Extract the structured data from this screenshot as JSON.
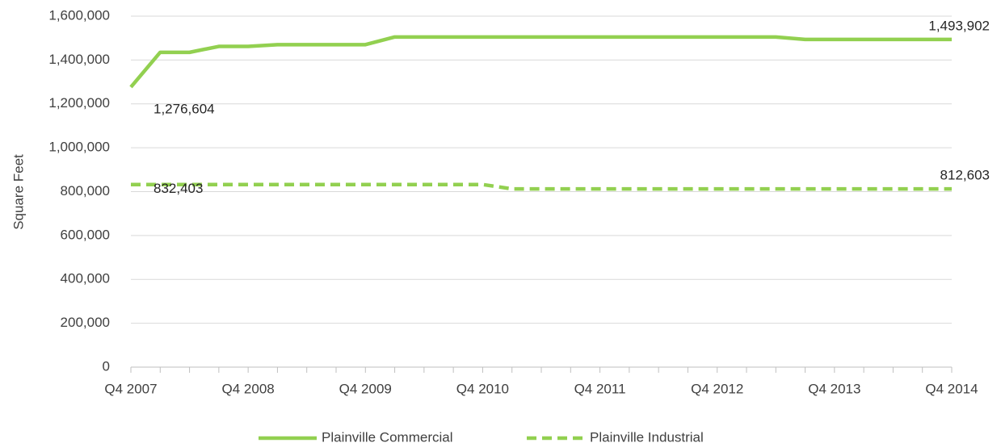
{
  "chart_data": {
    "type": "line",
    "y_label": "Square Feet",
    "categories": [
      "Q4 2007",
      null,
      null,
      null,
      "Q4 2008",
      null,
      null,
      null,
      "Q4 2009",
      null,
      null,
      null,
      "Q4 2010",
      null,
      null,
      null,
      "Q4 2011",
      null,
      null,
      null,
      "Q4 2012",
      null,
      null,
      null,
      "Q4 2013",
      null,
      null,
      null,
      "Q4 2014"
    ],
    "series": [
      {
        "name": "Plainville Commercial",
        "color": "#92d050",
        "line_style": "solid",
        "values": [
          1276604,
          1435000,
          1435000,
          1462000,
          1462000,
          1470000,
          1470000,
          1470000,
          1470000,
          1505000,
          1505000,
          1505000,
          1505000,
          1505000,
          1505000,
          1505000,
          1505000,
          1505000,
          1505000,
          1505000,
          1505000,
          1505000,
          1505000,
          1493902,
          1493902,
          1493902,
          1493902,
          1493902,
          1493902
        ],
        "value_labels": [
          "1,276,604",
          null,
          null,
          null,
          null,
          null,
          null,
          null,
          null,
          null,
          null,
          null,
          null,
          null,
          null,
          null,
          null,
          null,
          null,
          null,
          null,
          null,
          null,
          null,
          null,
          null,
          null,
          null,
          "1,493,902"
        ]
      },
      {
        "name": "Plainville Industrial",
        "color": "#92d050",
        "line_style": "dashed",
        "values": [
          832403,
          832403,
          832403,
          832403,
          832403,
          832403,
          832403,
          832403,
          832403,
          832403,
          832403,
          832403,
          832403,
          812603,
          812603,
          812603,
          812603,
          812603,
          812603,
          812603,
          812603,
          812603,
          812603,
          812603,
          812603,
          812603,
          812603,
          812603,
          812603
        ],
        "value_labels": [
          "832,403",
          null,
          null,
          null,
          null,
          null,
          null,
          null,
          null,
          null,
          null,
          null,
          null,
          null,
          null,
          null,
          null,
          null,
          null,
          null,
          null,
          null,
          null,
          null,
          null,
          null,
          null,
          null,
          "812,603"
        ]
      }
    ],
    "ylim": [
      0,
      1600000
    ],
    "yticks": [
      0,
      {
        "value": 200000,
        "label": "200,000"
      },
      {
        "value": 400000,
        "label": "400,000"
      },
      {
        "value": 600000,
        "label": "600,000"
      },
      {
        "value": 800000,
        "label": "800,000"
      },
      {
        "value": 1000000,
        "label": "1,000,000"
      },
      {
        "value": 1200000,
        "label": "1,200,000"
      },
      {
        "value": 1400000,
        "label": "1,400,000"
      },
      {
        "value": 1600000,
        "label": "1,600,000"
      }
    ],
    "grid": true,
    "legend": "bottom"
  }
}
